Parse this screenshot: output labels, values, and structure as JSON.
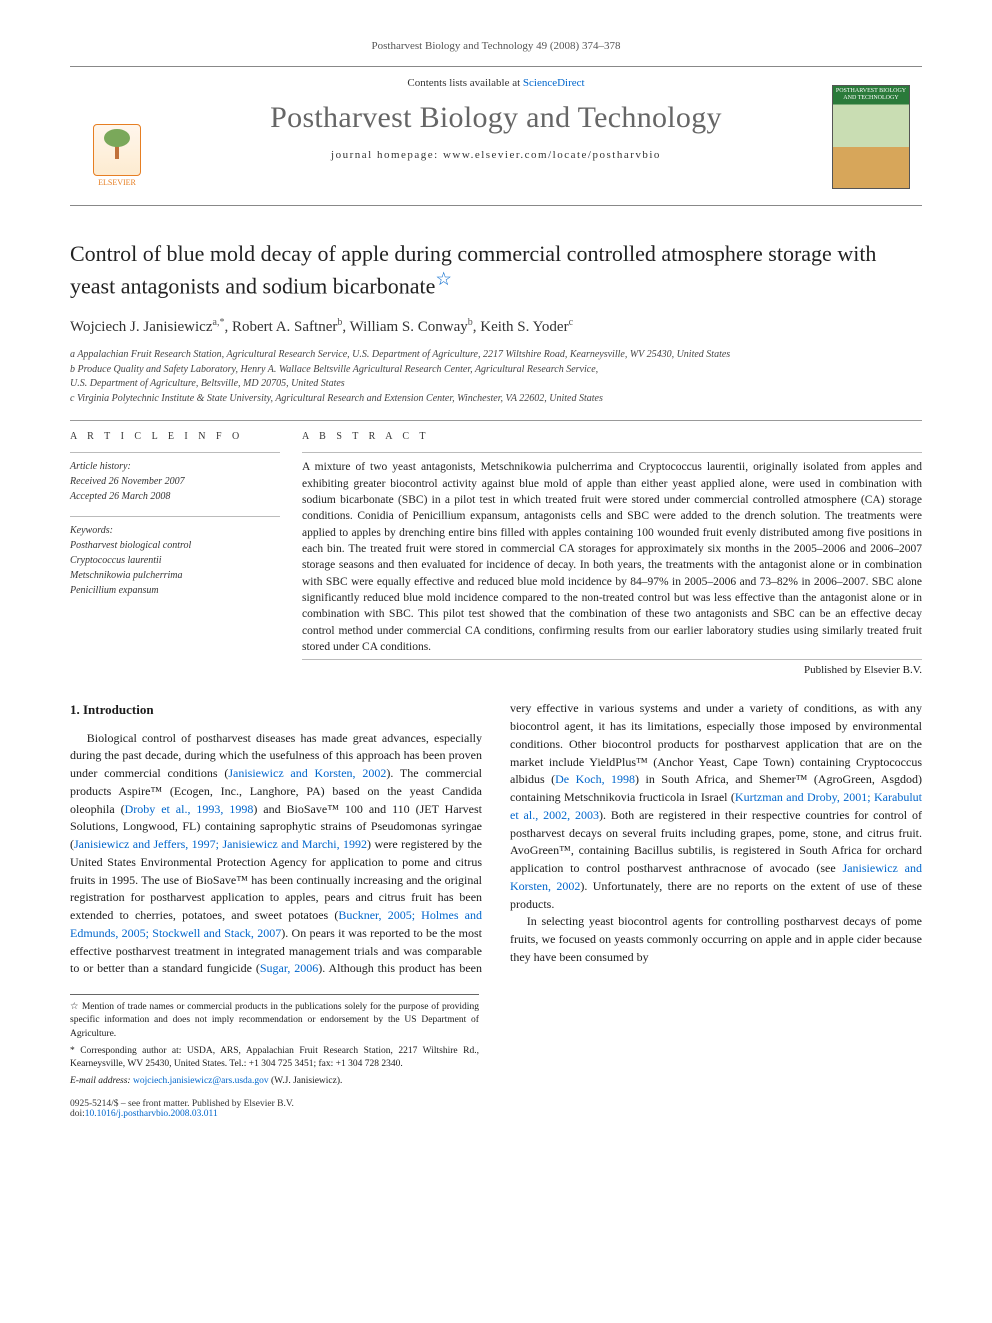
{
  "running_head": "Postharvest Biology and Technology 49 (2008) 374–378",
  "masthead": {
    "lists_text": "Contents lists available at ",
    "lists_link": "ScienceDirect",
    "journal_title": "Postharvest Biology and Technology",
    "homepage_label": "journal homepage: www.elsevier.com/locate/postharvbio",
    "publisher_name": "ELSEVIER",
    "cover_caption": "POSTHARVEST BIOLOGY AND TECHNOLOGY"
  },
  "article": {
    "title": "Control of blue mold decay of apple during commercial controlled atmosphere storage with yeast antagonists and sodium bicarbonate",
    "title_note_marker": "☆",
    "authors_html": "Wojciech J. Janisiewicz<sup>a,*</sup>, Robert A. Saftner<sup>b</sup>, William S. Conway<sup>b</sup>, Keith S. Yoder<sup>c</sup>",
    "affiliations": [
      "a Appalachian Fruit Research Station, Agricultural Research Service, U.S. Department of Agriculture, 2217 Wiltshire Road, Kearneysville, WV 25430, United States",
      "b Produce Quality and Safety Laboratory, Henry A. Wallace Beltsville Agricultural Research Center, Agricultural Research Service,",
      "U.S. Department of Agriculture, Beltsville, MD 20705, United States",
      "c Virginia Polytechnic Institute & State University, Agricultural Research and Extension Center, Winchester, VA 22602, United States"
    ]
  },
  "info": {
    "section_head": "A R T I C L E   I N F O",
    "history_label": "Article history:",
    "received": "Received 26 November 2007",
    "accepted": "Accepted 26 March 2008",
    "keywords_label": "Keywords:",
    "keywords": [
      "Postharvest biological control",
      "Cryptococcus laurentii",
      "Metschnikowia pulcherrima",
      "Penicillium expansum"
    ]
  },
  "abstract": {
    "section_head": "A B S T R A C T",
    "text": "A mixture of two yeast antagonists, Metschnikowia pulcherrima and Cryptococcus laurentii, originally isolated from apples and exhibiting greater biocontrol activity against blue mold of apple than either yeast applied alone, were used in combination with sodium bicarbonate (SBC) in a pilot test in which treated fruit were stored under commercial controlled atmosphere (CA) storage conditions. Conidia of Penicillium expansum, antagonists cells and SBC were added to the drench solution. The treatments were applied to apples by drenching entire bins filled with apples containing 100 wounded fruit evenly distributed among five positions in each bin. The treated fruit were stored in commercial CA storages for approximately six months in the 2005–2006 and 2006–2007 storage seasons and then evaluated for incidence of decay. In both years, the treatments with the antagonist alone or in combination with SBC were equally effective and reduced blue mold incidence by 84–97% in 2005–2006 and 73–82% in 2006–2007. SBC alone significantly reduced blue mold incidence compared to the non-treated control but was less effective than the antagonist alone or in combination with SBC. This pilot test showed that the combination of these two antagonists and SBC can be an effective decay control method under commercial CA conditions, confirming results from our earlier laboratory studies using similarly treated fruit stored under CA conditions.",
    "published_note": "Published by Elsevier B.V."
  },
  "body": {
    "heading": "1. Introduction",
    "col1_p1_pre": "Biological control of postharvest diseases has made great advances, especially during the past decade, during which the usefulness of this approach has been proven under commercial conditions (",
    "col1_link1": "Janisiewicz and Korsten, 2002",
    "col1_p1_mid1": "). The commercial products Aspire™ (Ecogen, Inc., Langhore, PA) based on the yeast Candida oleophila (",
    "col1_link2": "Droby et al., 1993, 1998",
    "col1_p1_mid2": ") and BioSave™ 100 and 110 (JET Harvest Solutions, Longwood, FL) containing saprophytic strains of Pseudomonas syringae (",
    "col1_link3": "Janisiewicz and Jeffers, 1997; Janisiewicz and Marchi, 1992",
    "col1_p1_post": ") were registered by the United States Environmental Protection Agency for application to pome and citrus fruits in 1995. The use of BioSave™ has been continually increasing and the original registration for postharvest application to apples, pears",
    "col2_p1_pre": "and citrus fruit has been extended to cherries, potatoes, and sweet potatoes (",
    "col2_link1": "Buckner, 2005; Holmes and Edmunds, 2005; Stockwell and Stack, 2007",
    "col2_p1_mid1": "). On pears it was reported to be the most effective postharvest treatment in integrated management trials and was comparable to or better than a standard fungicide (",
    "col2_link2": "Sugar, 2006",
    "col2_p1_mid2": "). Although this product has been very effective in various systems and under a variety of conditions, as with any biocontrol agent, it has its limitations, especially those imposed by environmental conditions. Other biocontrol products for postharvest application that are on the market include YieldPlus™ (Anchor Yeast, Cape Town) containing Cryptococcus albidus (",
    "col2_link3": "De Koch, 1998",
    "col2_p1_mid3": ") in South Africa, and Shemer™ (AgroGreen, Asgdod) containing Metschnikovia fructicola in Israel (",
    "col2_link4": "Kurtzman and Droby, 2001; Karabulut et al., 2002, 2003",
    "col2_p1_mid4": "). Both are registered in their respective countries for control of postharvest decays on several fruits including grapes, pome, stone, and citrus fruit. AvoGreen™, containing Bacillus subtilis, is registered in South Africa for orchard application to control postharvest anthracnose of avocado (see ",
    "col2_link5": "Janisiewicz and Korsten, 2002",
    "col2_p1_post": "). Unfortunately, there are no reports on the extent of use of these products.",
    "col2_p2": "In selecting yeast biocontrol agents for controlling postharvest decays of pome fruits, we focused on yeasts commonly occurring on apple and in apple cider because they have been consumed by"
  },
  "footnotes": {
    "star": "☆ Mention of trade names or commercial products in the publications solely for the purpose of providing specific information and does not imply recommendation or endorsement by the US Department of Agriculture.",
    "corr_label": "* Corresponding author at: USDA, ARS, Appalachian Fruit Research Station, 2217 Wiltshire Rd., Kearneysville, WV 25430, United States. Tel.: +1 304 725 3451; fax: +1 304 728 2340.",
    "email_label": "E-mail address: ",
    "email": "wojciech.janisiewicz@ars.usda.gov",
    "email_who": " (W.J. Janisiewicz)."
  },
  "copyright": {
    "line1": "0925-5214/$ – see front matter. Published by Elsevier B.V.",
    "doi_label": "doi:",
    "doi": "10.1016/j.postharvbio.2008.03.011"
  },
  "colors": {
    "link": "#0066cc",
    "rule": "#999999",
    "text": "#1a1a1a",
    "muted": "#555555",
    "elsevier_orange": "#e67e22"
  }
}
